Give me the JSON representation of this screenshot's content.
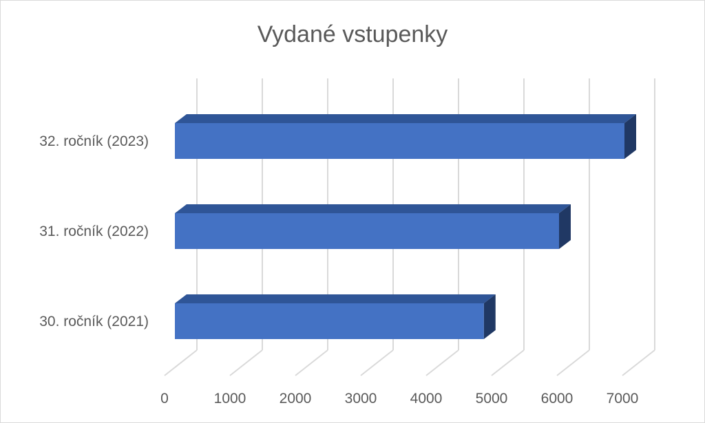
{
  "chart_data": {
    "type": "bar",
    "orientation": "horizontal",
    "three_d": true,
    "title": "Vydané vstupenky",
    "categories": [
      "32. ročník (2023)",
      "31. ročník (2022)",
      "30. ročník (2021)"
    ],
    "values": [
      7000,
      6000,
      4850
    ],
    "xlim": [
      0,
      7000
    ],
    "xticks": [
      "0",
      "1000",
      "2000",
      "3000",
      "4000",
      "5000",
      "6000",
      "7000"
    ],
    "grid": true,
    "legend": "none",
    "colors": {
      "bar_front": "#4472c4",
      "bar_top": "#2f5597",
      "bar_side": "#203864",
      "grid": "#d9d9d9",
      "text": "#595959"
    }
  }
}
